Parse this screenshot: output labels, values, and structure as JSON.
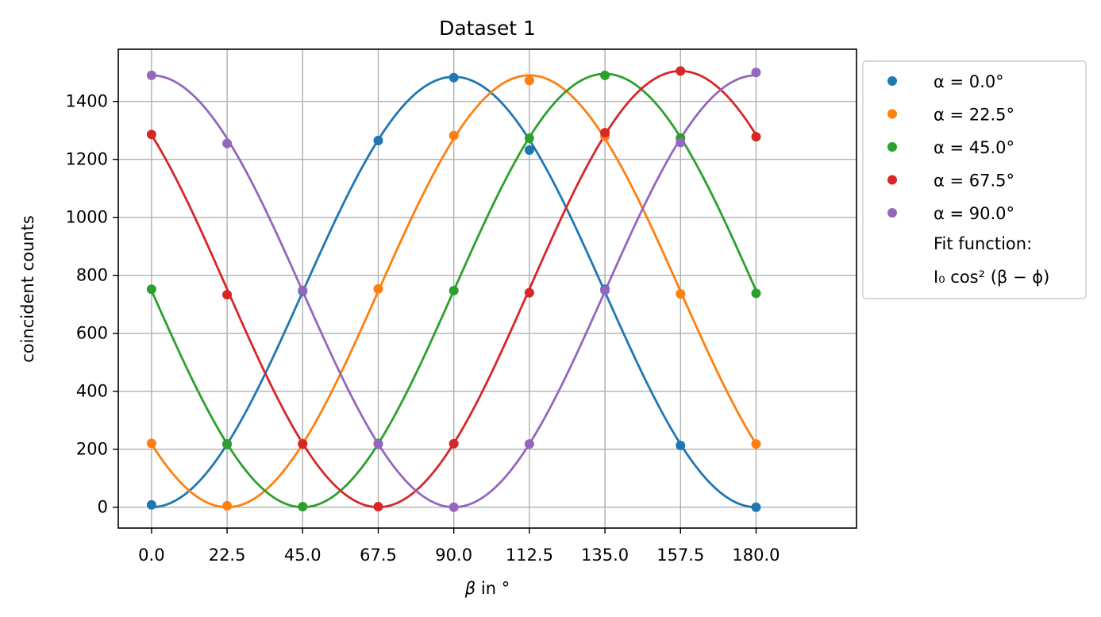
{
  "chart_data": {
    "type": "scatter",
    "title": "Dataset 1",
    "xlabel_var": "β",
    "xlabel_rest": " in °",
    "ylabel": "coincident counts",
    "xlim": [
      -9.9,
      209.9
    ],
    "ylim": [
      -72,
      1580
    ],
    "xticks": [
      0,
      22.5,
      45,
      67.5,
      90,
      112.5,
      135,
      157.5,
      180
    ],
    "xtick_labels": [
      "0.0",
      "22.5",
      "45.0",
      "67.5",
      "90.0",
      "112.5",
      "135.0",
      "157.5",
      "180.0"
    ],
    "yticks": [
      0,
      200,
      400,
      600,
      800,
      1000,
      1200,
      1400
    ],
    "ytick_labels": [
      "0",
      "200",
      "400",
      "600",
      "800",
      "1000",
      "1200",
      "1400"
    ],
    "grid": true,
    "legend_position": "outside-right-top",
    "fit_label_line1": "Fit function:",
    "fit_label_line2": "I₀ cos² (β − ϕ)",
    "series": [
      {
        "name": "α = 0.0°",
        "color": "#1f77b4",
        "x": [
          0,
          22.5,
          45,
          67.5,
          90,
          112.5,
          135,
          157.5,
          180
        ],
        "y": [
          8,
          218,
          745,
          1265,
          1482,
          1232,
          752,
          213,
          0
        ],
        "fit": {
          "I0": 1485,
          "phi": 90
        }
      },
      {
        "name": "α = 22.5°",
        "color": "#ff7f0e",
        "x": [
          0,
          22.5,
          45,
          67.5,
          90,
          112.5,
          135,
          157.5,
          180
        ],
        "y": [
          220,
          5,
          220,
          753,
          1282,
          1472,
          1280,
          736,
          218
        ],
        "fit": {
          "I0": 1490,
          "phi": 112.5
        }
      },
      {
        "name": "α = 45.0°",
        "color": "#2ca02c",
        "x": [
          0,
          22.5,
          45,
          67.5,
          90,
          112.5,
          135,
          157.5,
          180
        ],
        "y": [
          752,
          217,
          2,
          220,
          747,
          1273,
          1490,
          1274,
          738
        ],
        "fit": {
          "I0": 1495,
          "phi": 135
        }
      },
      {
        "name": "α = 67.5°",
        "color": "#d62728",
        "x": [
          0,
          22.5,
          45,
          67.5,
          90,
          112.5,
          135,
          157.5,
          180
        ],
        "y": [
          1286,
          733,
          218,
          2,
          219,
          740,
          1292,
          1505,
          1278
        ],
        "fit": {
          "I0": 1505,
          "phi": 157.5
        }
      },
      {
        "name": "α = 90.0°",
        "color": "#9467bd",
        "x": [
          0,
          22.5,
          45,
          67.5,
          90,
          112.5,
          135,
          157.5,
          180
        ],
        "y": [
          1490,
          1255,
          748,
          218,
          0,
          218,
          748,
          1258,
          1500
        ],
        "fit": {
          "I0": 1490,
          "phi": 0
        }
      }
    ]
  }
}
